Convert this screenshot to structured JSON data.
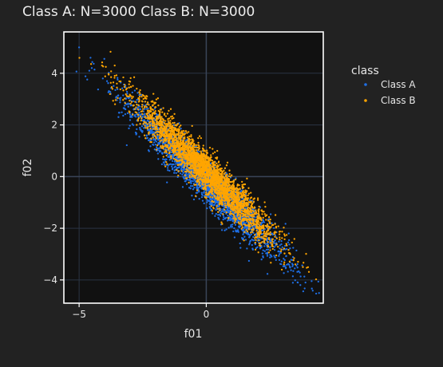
{
  "title": "Class A: N=3000   Class B: N=3000",
  "colors": {
    "page_bg": "#222222",
    "plot_bg": "#111111",
    "grid": "#2b3444",
    "frame": "#ffffff",
    "text": "#e6e6e6"
  },
  "chart_data": {
    "type": "scatter",
    "xlabel": "f01",
    "ylabel": "f02",
    "xlim": [
      -5.6,
      4.6
    ],
    "ylim": [
      -4.9,
      5.6
    ],
    "xticks": [
      -5,
      0
    ],
    "xtick_labels": [
      "−5",
      "0"
    ],
    "yticks": [
      -4,
      -2,
      0,
      2,
      4
    ],
    "ytick_labels": [
      "−4",
      "−2",
      "0",
      "2",
      "4"
    ],
    "grid": true,
    "legend": {
      "title": "class",
      "placement": "right, outside plot"
    },
    "series": [
      {
        "name": "Class A",
        "color": "#1f6fe5",
        "n": 3000,
        "description_of_distribution": "elongated cloud along y ≈ -x, slightly below the diagonal",
        "center": [
          0.0,
          -0.15
        ],
        "spread_along": 1.45,
        "spread_across": 0.21,
        "outliers": [
          [
            -5.0,
            5.0
          ],
          [
            -4.6,
            4.1
          ],
          [
            -4.5,
            4.2
          ],
          [
            3.6,
            -4.1
          ],
          [
            3.7,
            -4.2
          ],
          [
            3.9,
            -4.1
          ]
        ]
      },
      {
        "name": "Class B",
        "color": "#ffa500",
        "n": 3000,
        "center": [
          0.0,
          0.2
        ],
        "spread_along": 1.3,
        "spread_across": 0.2,
        "outliers": [
          [
            -4.1,
            4.3
          ],
          [
            -3.6,
            3.9
          ],
          [
            3.8,
            -3.5
          ],
          [
            3.5,
            -3.4
          ],
          [
            3.3,
            -3.0
          ]
        ]
      }
    ]
  }
}
